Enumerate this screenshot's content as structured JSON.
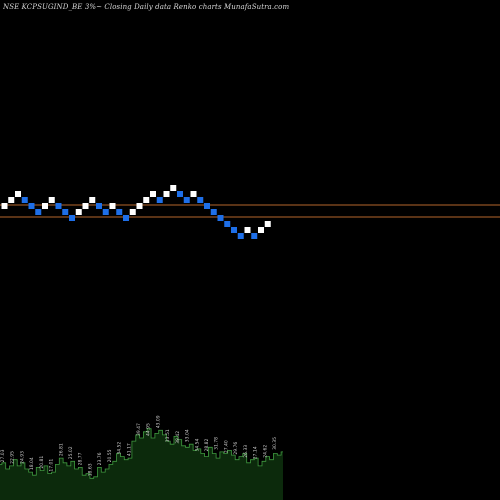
{
  "chart_data": {
    "type": "renko",
    "title": "NSE KCPSUGIND_BE 3%~  Closing Daily data  Renko  charts MunafaSutra.com",
    "colors": {
      "background": "#000000",
      "up_brick": "#ffffff",
      "down_brick": "#1e6fe8",
      "reference_line": "#b4662d",
      "volume_fill": "#0c2a0c",
      "volume_line": "#3f9a3f"
    },
    "bricks": [
      {
        "d": "up",
        "level": 1
      },
      {
        "d": "up",
        "level": 2
      },
      {
        "d": "up",
        "level": 3
      },
      {
        "d": "down",
        "level": 2
      },
      {
        "d": "down",
        "level": 1
      },
      {
        "d": "down",
        "level": 0
      },
      {
        "d": "up",
        "level": 1
      },
      {
        "d": "up",
        "level": 2
      },
      {
        "d": "down",
        "level": 1
      },
      {
        "d": "down",
        "level": 0
      },
      {
        "d": "down",
        "level": -1
      },
      {
        "d": "up",
        "level": 0
      },
      {
        "d": "up",
        "level": 1
      },
      {
        "d": "up",
        "level": 2
      },
      {
        "d": "down",
        "level": 1
      },
      {
        "d": "down",
        "level": 0
      },
      {
        "d": "up",
        "level": 1
      },
      {
        "d": "down",
        "level": 0
      },
      {
        "d": "down",
        "level": -1
      },
      {
        "d": "up",
        "level": 0
      },
      {
        "d": "up",
        "level": 1
      },
      {
        "d": "up",
        "level": 2
      },
      {
        "d": "up",
        "level": 3
      },
      {
        "d": "down",
        "level": 2
      },
      {
        "d": "up",
        "level": 3
      },
      {
        "d": "up",
        "level": 4
      },
      {
        "d": "down",
        "level": 3
      },
      {
        "d": "down",
        "level": 2
      },
      {
        "d": "up",
        "level": 3
      },
      {
        "d": "down",
        "level": 2
      },
      {
        "d": "down",
        "level": 1
      },
      {
        "d": "down",
        "level": 0
      },
      {
        "d": "down",
        "level": -1
      },
      {
        "d": "down",
        "level": -2
      },
      {
        "d": "down",
        "level": -3
      },
      {
        "d": "down",
        "level": -4
      },
      {
        "d": "up",
        "level": -3
      },
      {
        "d": "down",
        "level": -4
      },
      {
        "d": "up",
        "level": -3
      },
      {
        "d": "up",
        "level": -2
      }
    ],
    "reference_lines": [
      1,
      -1
    ],
    "volume": {
      "values": [
        23,
        24,
        20,
        22,
        26,
        22,
        24,
        20,
        18,
        16,
        21,
        19,
        22,
        17,
        18,
        23,
        27,
        24,
        22,
        25,
        20,
        21,
        16,
        17,
        14,
        15,
        21,
        18,
        20,
        23,
        25,
        30,
        28,
        26,
        27,
        38,
        42,
        40,
        44,
        46,
        40,
        43,
        45,
        42,
        38,
        36,
        41,
        39,
        35,
        34,
        36,
        32,
        33,
        30,
        28,
        34,
        30,
        27,
        31,
        30,
        32,
        29,
        26,
        28,
        30,
        24,
        26,
        27,
        22,
        25,
        28,
        26,
        30,
        29,
        31
      ],
      "labels": [
        "27.03",
        "22.95",
        "24.93",
        "18.04",
        "20.81",
        "17.01",
        "26.81",
        "25.02",
        "28.77",
        "18.63",
        "23.76",
        "20.55",
        "34.52",
        "41.17",
        "39.47",
        "44.95",
        "43.09",
        "33.51",
        "38.42",
        "33.04",
        "34.54",
        "28.82",
        "31.78",
        "27.40",
        "29.76",
        "26.33",
        "27.14",
        "24.62",
        "30.35"
      ]
    }
  }
}
